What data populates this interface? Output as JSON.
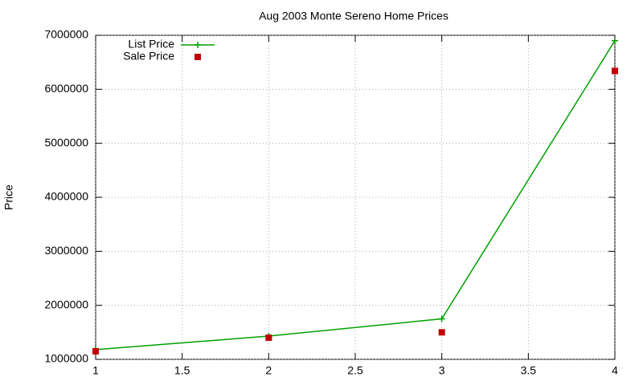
{
  "chart_data": {
    "type": "line",
    "title": "Aug 2003 Monte Sereno Home Prices",
    "y_label": "Price",
    "x": [
      1,
      2,
      3,
      4
    ],
    "series": [
      {
        "name": "List Price",
        "color": "#00a000",
        "mode": "lines+points",
        "values": [
          1180000,
          1430000,
          1750000,
          6900000
        ]
      },
      {
        "name": "Sale Price",
        "color": "#c00000",
        "mode": "points",
        "values": [
          1150000,
          1400000,
          1500000,
          6340000
        ]
      }
    ],
    "xlim": [
      1,
      4
    ],
    "xticks": [
      1,
      1.5,
      2,
      2.5,
      3,
      3.5,
      4
    ],
    "ylim": [
      1000000,
      7000000
    ],
    "yticks": [
      1000000,
      2000000,
      3000000,
      4000000,
      5000000,
      6000000,
      7000000
    ],
    "grid": true,
    "legend": "top-left"
  }
}
